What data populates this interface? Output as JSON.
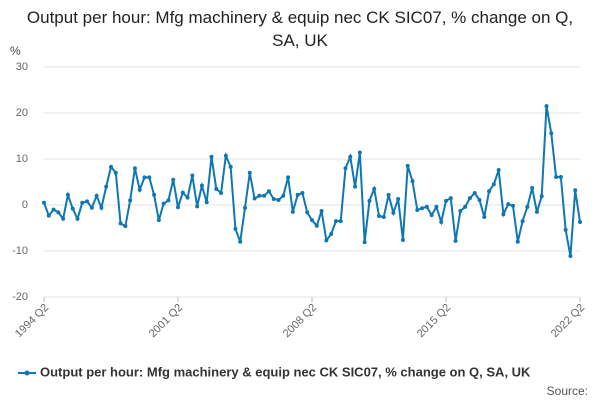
{
  "chart_data": {
    "type": "line",
    "title": "Output per hour: Mfg machinery & equip nec CK SIC07, % change on Q, SA, UK",
    "y_label": "%",
    "source": "Source:",
    "categories": [
      "1994 Q2",
      null,
      null,
      null,
      null,
      null,
      null,
      null,
      null,
      null,
      null,
      null,
      null,
      null,
      null,
      null,
      null,
      null,
      null,
      null,
      null,
      null,
      null,
      null,
      null,
      null,
      null,
      null,
      "2001 Q2",
      null,
      null,
      null,
      null,
      null,
      null,
      null,
      null,
      null,
      null,
      null,
      null,
      null,
      null,
      null,
      null,
      null,
      null,
      null,
      null,
      null,
      null,
      null,
      null,
      null,
      null,
      null,
      "2008 Q2",
      null,
      null,
      null,
      null,
      null,
      null,
      null,
      null,
      null,
      null,
      null,
      null,
      null,
      null,
      null,
      null,
      null,
      null,
      null,
      null,
      null,
      null,
      null,
      null,
      null,
      null,
      null,
      "2015 Q2",
      null,
      null,
      null,
      null,
      null,
      null,
      null,
      null,
      null,
      null,
      null,
      null,
      null,
      null,
      null,
      null,
      null,
      null,
      null,
      null,
      null,
      null,
      null,
      null,
      null,
      null,
      null,
      "2022 Q2"
    ],
    "series": [
      {
        "name": "Output per hour: Mfg machinery & equip nec CK SIC07, % change on Q, SA, UK",
        "color": "#0f77b3",
        "values": [
          0.5,
          -2.3,
          -1,
          -1.6,
          -3,
          2.2,
          -0.8,
          -3,
          0.5,
          0.8,
          -0.6,
          2,
          -0.6,
          4,
          8.3,
          7,
          -4,
          -4.6,
          1,
          8,
          3.3,
          6,
          6,
          2.2,
          -3.3,
          0.3,
          1,
          5.5,
          -0.5,
          2.7,
          1.6,
          6.4,
          -0.3,
          4.2,
          0.6,
          10.5,
          3.5,
          2.6,
          10.7,
          8.3,
          -5.2,
          -8,
          -0.6,
          7,
          1.4,
          2,
          2,
          3,
          1.3,
          1.1,
          2,
          6,
          -1.5,
          2.2,
          2.6,
          -1.6,
          -3.3,
          -4.5,
          -1.3,
          -7.7,
          -6.3,
          -3.5,
          -3.5,
          8,
          10.5,
          4,
          11.4,
          -8.1,
          0.9,
          3.5,
          -2.4,
          -2.6,
          2.2,
          -1.7,
          1.3,
          -7.6,
          8.5,
          5.2,
          -1.1,
          -0.7,
          -0.4,
          -2.2,
          -0.4,
          -3.7,
          0.9,
          1.5,
          -7.8,
          -1.3,
          -0.4,
          1.5,
          2.6,
          1.1,
          -2.6,
          3,
          4.5,
          7.6,
          -2,
          0.2,
          -0.2,
          -8,
          -3.5,
          -0.4,
          3.7,
          -1.5,
          1.9,
          21.5,
          15.6,
          6.1,
          6.1,
          -5.4,
          -11.1,
          3.2,
          -3.7
        ]
      }
    ],
    "ylim": [
      -20,
      30
    ],
    "yticks": [
      -20,
      -10,
      0,
      10,
      20,
      30
    ],
    "grid": true
  }
}
